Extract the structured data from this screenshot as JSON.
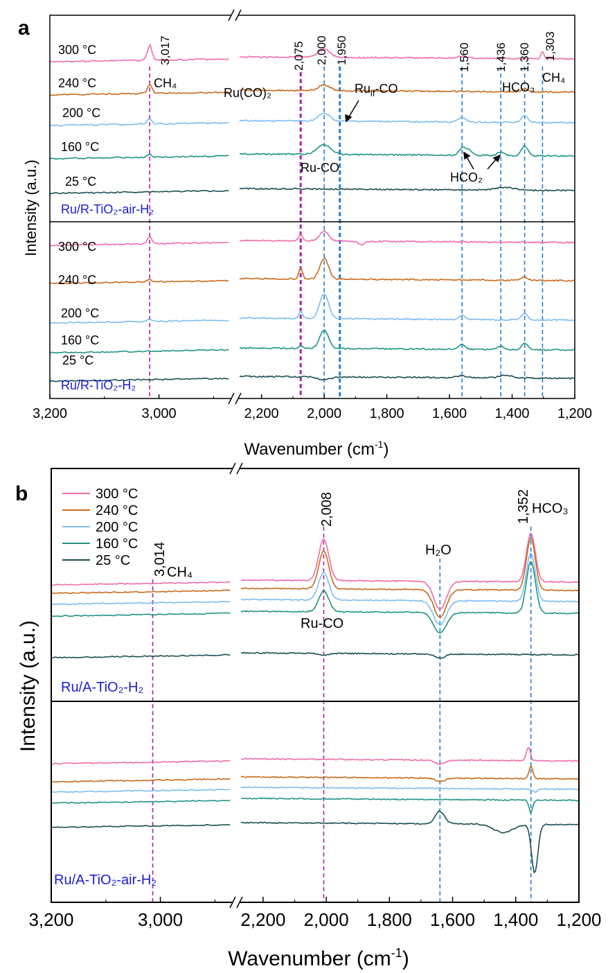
{
  "chart_data": [
    {
      "panel_label": "a",
      "type": "line",
      "xlabel": "Wavenumber (cm",
      "xlabel_sup": "-1",
      "xlabel_end": ")",
      "ylabel": "Intensity (a.u.)",
      "xlim": [
        3200,
        1200
      ],
      "axis_break": [
        2870,
        2270
      ],
      "x_ticks": [
        3200,
        3000,
        2200,
        2000,
        1800,
        1600,
        1400,
        1200
      ],
      "x_tick_labels": [
        "3,200",
        "3,000",
        "2,200",
        "2,000",
        "1,800",
        "1,600",
        "1,400",
        "1,200"
      ],
      "colors": {
        "300": "#f06aa9",
        "240": "#c9691a",
        "200": "#7bbcf2",
        "160": "#1d9484",
        "25": "#1b4d50",
        "ref_blue": "#1f7fd6",
        "ref_magenta": "#b01fb0"
      },
      "subplots": [
        {
          "sample": "Ru/R-TiO₂-air-H₂",
          "series": [
            {
              "name": "300 °C",
              "offset": 0,
              "peaks": [
                [
                  3017,
                  22,
                  4
                ],
                [
                  2000,
                  12,
                  18
                ],
                [
                  1303,
                  10,
                  5
                ],
                [
                  1560,
                  3,
                  15
                ]
              ]
            },
            {
              "name": "240 °C",
              "offset": 1,
              "peaks": [
                [
                  3017,
                  14,
                  4
                ],
                [
                  2000,
                  8,
                  18
                ],
                [
                  1360,
                  4,
                  12
                ]
              ]
            },
            {
              "name": "200 °C",
              "offset": 2,
              "peaks": [
                [
                  3017,
                  8,
                  4
                ],
                [
                  2000,
                  11,
                  18
                ],
                [
                  1560,
                  6,
                  12
                ],
                [
                  1360,
                  10,
                  10
                ]
              ]
            },
            {
              "name": "160 °C",
              "offset": 3,
              "peaks": [
                [
                  3017,
                  4,
                  4
                ],
                [
                  2000,
                  14,
                  22
                ],
                [
                  1560,
                  10,
                  10
                ],
                [
                  1540,
                  8,
                  10
                ],
                [
                  1436,
                  5,
                  10
                ],
                [
                  1360,
                  14,
                  10
                ]
              ]
            },
            {
              "name": "25 °C",
              "offset": 4,
              "peaks": [
                [
                  1420,
                  4,
                  30
                ]
              ]
            }
          ]
        },
        {
          "sample": "Ru/R-TiO₂-H₂",
          "series": [
            {
              "name": "300 °C",
              "offset": 0,
              "peaks": [
                [
                  3017,
                  10,
                  4
                ],
                [
                  2075,
                  10,
                  6
                ],
                [
                  2000,
                  14,
                  14
                ],
                [
                  1880,
                  -5,
                  10
                ]
              ]
            },
            {
              "name": "240 °C",
              "offset": 1,
              "peaks": [
                [
                  3017,
                  3,
                  4
                ],
                [
                  2075,
                  16,
                  6
                ],
                [
                  2000,
                  30,
                  14
                ],
                [
                  1360,
                  5,
                  10
                ]
              ]
            },
            {
              "name": "200 °C",
              "offset": 2,
              "peaks": [
                [
                  3017,
                  3,
                  4
                ],
                [
                  2075,
                  10,
                  6
                ],
                [
                  2000,
                  36,
                  14
                ],
                [
                  1560,
                  6,
                  10
                ],
                [
                  1360,
                  9,
                  10
                ]
              ]
            },
            {
              "name": "160 °C",
              "offset": 3,
              "peaks": [
                [
                  2075,
                  4,
                  6
                ],
                [
                  2000,
                  26,
                  14
                ],
                [
                  1560,
                  7,
                  10
                ],
                [
                  1436,
                  5,
                  10
                ],
                [
                  1360,
                  9,
                  10
                ]
              ]
            },
            {
              "name": "25 °C",
              "offset": 4,
              "peaks": [
                [
                  2000,
                  -4,
                  20
                ],
                [
                  1560,
                  3,
                  15
                ],
                [
                  1420,
                  4,
                  20
                ]
              ]
            }
          ]
        }
      ],
      "reference_lines": [
        {
          "x": 3017,
          "label": "3,017",
          "color": "magenta"
        },
        {
          "x": 2075,
          "label": "2,075",
          "color": "magenta"
        },
        {
          "x": 2000,
          "label": "2,000",
          "color": "blue"
        },
        {
          "x": 1950,
          "label": "1,950",
          "color": "blue"
        },
        {
          "x": 1560,
          "label": "1,560",
          "color": "blue"
        },
        {
          "x": 1436,
          "label": "1,436",
          "color": "blue"
        },
        {
          "x": 1360,
          "label": "1,360",
          "color": "blue"
        },
        {
          "x": 1303,
          "label": "1,303",
          "color": "blue"
        }
      ],
      "annotations": [
        "CH₄",
        "Ru(CO)₂",
        "Ru",
        "if",
        "-CO",
        "Ru-CO",
        "HCO₂",
        "HCO₃",
        "CH₄"
      ]
    },
    {
      "panel_label": "b",
      "type": "line",
      "xlabel": "Wavenumber (cm",
      "xlabel_sup": "-1",
      "xlabel_end": ")",
      "ylabel": "Intensity (a.u.)",
      "xlim": [
        3200,
        1200
      ],
      "axis_break": [
        2870,
        2270
      ],
      "x_ticks": [
        3200,
        3000,
        2200,
        2000,
        1800,
        1600,
        1400,
        1200
      ],
      "x_tick_labels": [
        "3,200",
        "3,000",
        "2,200",
        "2,000",
        "1,800",
        "1,600",
        "1,400",
        "1,200"
      ],
      "legend": [
        "300 °C",
        "240 °C",
        "200 °C",
        "160 °C",
        "25 °C"
      ],
      "legend_position": "top-left",
      "subplots": [
        {
          "sample": "Ru/A-TiO₂-H₂",
          "series": [
            {
              "name": "300 °C",
              "offset": 0,
              "peaks": [
                [
                  2008,
                  60,
                  16
                ],
                [
                  1640,
                  -40,
                  20
                ],
                [
                  1352,
                  70,
                  14
                ]
              ]
            },
            {
              "name": "240 °C",
              "offset": 1,
              "peaks": [
                [
                  2008,
                  55,
                  16
                ],
                [
                  1640,
                  -40,
                  20
                ],
                [
                  1352,
                  75,
                  14
                ]
              ]
            },
            {
              "name": "200 °C",
              "offset": 2,
              "peaks": [
                [
                  2008,
                  40,
                  16
                ],
                [
                  1640,
                  -35,
                  20
                ],
                [
                  1352,
                  70,
                  14
                ]
              ]
            },
            {
              "name": "160 °C",
              "offset": 3,
              "peaks": [
                [
                  2008,
                  30,
                  16
                ],
                [
                  1640,
                  -30,
                  20
                ],
                [
                  1352,
                  75,
                  14
                ]
              ]
            },
            {
              "name": "25 °C",
              "offset": 4,
              "peaks": [
                [
                  2008,
                  -3,
                  15
                ],
                [
                  1640,
                  -6,
                  15
                ]
              ]
            }
          ]
        },
        {
          "sample": "Ru/A-TiO₂-air-H₂",
          "series": [
            {
              "name": "300 °C",
              "offset": 0,
              "peaks": [
                [
                  1640,
                  -6,
                  15
                ],
                [
                  1360,
                  20,
                  6
                ]
              ]
            },
            {
              "name": "240 °C",
              "offset": 1,
              "peaks": [
                [
                  1640,
                  -5,
                  15
                ],
                [
                  1352,
                  18,
                  6
                ]
              ]
            },
            {
              "name": "200 °C",
              "offset": 2,
              "peaks": [
                [
                  1340,
                  -4,
                  8
                ]
              ]
            },
            {
              "name": "160 °C",
              "offset": 3,
              "peaks": [
                [
                  1352,
                  -18,
                  6
                ]
              ]
            },
            {
              "name": "25 °C",
              "offset": 4,
              "peaks": [
                [
                  1640,
                  18,
                  15
                ],
                [
                  1440,
                  -12,
                  30
                ],
                [
                  1340,
                  -70,
                  10
                ]
              ]
            }
          ]
        }
      ],
      "reference_lines": [
        {
          "x": 3014,
          "label": "3,014",
          "color": "magenta"
        },
        {
          "x": 2008,
          "label": "2,008",
          "color": "magenta"
        },
        {
          "x": 1640,
          "label": "",
          "color": "blue"
        },
        {
          "x": 1352,
          "label": "1,352",
          "color": "blue"
        }
      ],
      "annotations": [
        "CH₄",
        "Ru-CO",
        "H₂O",
        "HCO₃"
      ]
    }
  ]
}
